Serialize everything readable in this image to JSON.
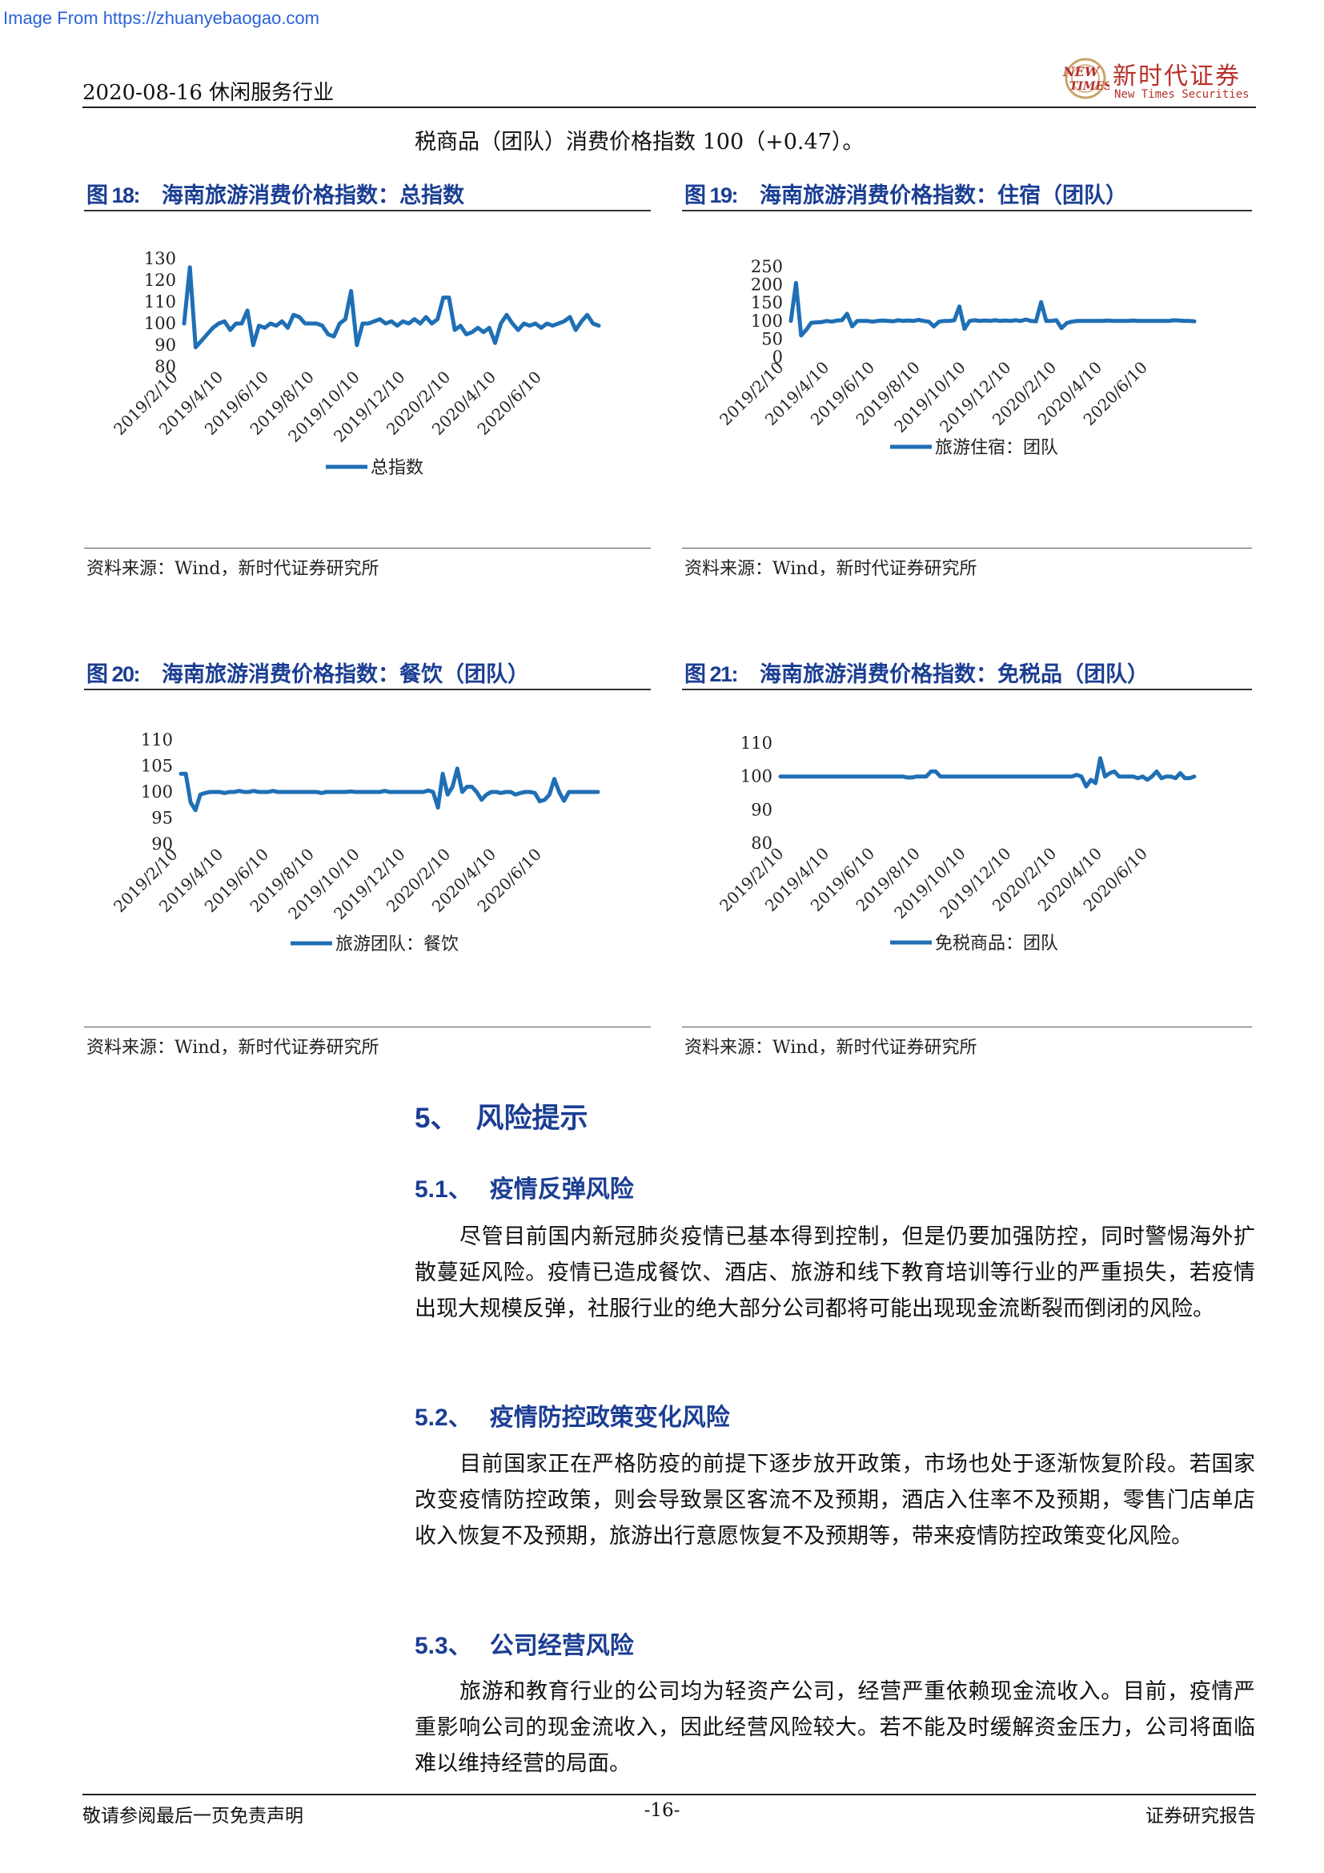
{
  "watermark": "Image From https://zhuanyebaogao.com",
  "header": {
    "date_industry": "2020-08-16 休闲服务行业",
    "logo_cn": "新时代证券",
    "logo_en": "New Times Securities",
    "logo_mark_line1": "NEW",
    "logo_mark_line2": "TIMES",
    "brand_color": "#b5322a"
  },
  "intro_line": "税商品（团队）消费价格指数 100（+0.47）。",
  "accent_color": "#1b3e93",
  "line_color": "#1f6fb5",
  "figures": [
    {
      "num": "图 18:",
      "title": "海南旅游消费价格指数：总指数",
      "legend": "总指数",
      "source": "资料来源：Wind，新时代证券研究所"
    },
    {
      "num": "图 19:",
      "title": "海南旅游消费价格指数：住宿（团队）",
      "legend": "旅游住宿：团队",
      "source": "资料来源：Wind，新时代证券研究所"
    },
    {
      "num": "图 20:",
      "title": "海南旅游消费价格指数：餐饮（团队）",
      "legend": "旅游团队：餐饮",
      "source": "资料来源：Wind，新时代证券研究所"
    },
    {
      "num": "图 21:",
      "title": "海南旅游消费价格指数：免税品（团队）",
      "legend": "免税商品：团队",
      "source": "资料来源：Wind，新时代证券研究所"
    }
  ],
  "chart_data": [
    {
      "type": "line",
      "x_ticks": [
        "2019/2/10",
        "2019/4/10",
        "2019/6/10",
        "2019/8/10",
        "2019/10/10",
        "2019/12/10",
        "2020/2/10",
        "2020/4/10",
        "2020/6/10"
      ],
      "y_ticks": [
        130,
        120,
        110,
        100,
        90,
        80
      ],
      "ylim": [
        80,
        130
      ],
      "legend_position": "bottom",
      "series": [
        {
          "name": "总指数",
          "values": [
            100,
            126,
            89,
            92,
            95,
            98,
            100,
            101,
            97,
            100,
            100,
            106,
            90,
            99,
            98,
            100,
            99,
            101,
            98,
            104,
            103,
            100,
            100,
            100,
            99,
            95,
            94,
            100,
            102,
            115,
            90,
            100,
            100,
            101,
            102,
            100,
            101,
            99,
            101,
            100,
            102,
            100,
            103,
            100,
            102,
            112,
            112,
            97,
            99,
            95,
            96,
            98,
            96,
            98,
            91,
            100,
            104,
            100,
            97,
            100,
            99,
            100,
            98,
            100,
            99,
            100,
            101,
            103,
            97,
            101,
            104,
            100,
            99
          ]
        }
      ]
    },
    {
      "type": "line",
      "x_ticks": [
        "2019/2/10",
        "2019/4/10",
        "2019/6/10",
        "2019/8/10",
        "2019/10/10",
        "2019/12/10",
        "2020/2/10",
        "2020/4/10",
        "2020/6/10"
      ],
      "y_ticks": [
        250,
        200,
        150,
        100,
        50,
        0
      ],
      "ylim": [
        0,
        250
      ],
      "legend_position": "bottom",
      "series": [
        {
          "name": "旅游住宿：团队",
          "values": [
            100,
            205,
            60,
            75,
            95,
            96,
            97,
            100,
            98,
            101,
            102,
            120,
            85,
            100,
            100,
            100,
            98,
            100,
            101,
            100,
            99,
            102,
            100,
            101,
            100,
            103,
            100,
            98,
            85,
            98,
            100,
            100,
            102,
            140,
            78,
            100,
            102,
            100,
            101,
            100,
            102,
            100,
            101,
            100,
            102,
            100,
            104,
            100,
            99,
            152,
            100,
            100,
            102,
            80,
            94,
            98,
            100,
            100,
            100,
            100,
            100,
            100,
            101,
            100,
            100,
            100,
            100,
            101,
            100,
            100,
            100,
            100,
            100,
            100,
            100,
            102,
            101,
            100,
            100,
            99
          ]
        }
      ]
    },
    {
      "type": "line",
      "x_ticks": [
        "2019/2/10",
        "2019/4/10",
        "2019/6/10",
        "2019/8/10",
        "2019/10/10",
        "2019/12/10",
        "2020/2/10",
        "2020/4/10",
        "2020/6/10"
      ],
      "y_ticks": [
        110,
        105,
        100,
        95,
        90
      ],
      "ylim": [
        90,
        110
      ],
      "legend_position": "bottom",
      "series": [
        {
          "name": "旅游团队：餐饮",
          "values": [
            103.5,
            103.5,
            98,
            96.5,
            99.5,
            99.8,
            100,
            100,
            100,
            99.8,
            100,
            100,
            100.2,
            100,
            100,
            100.2,
            100,
            100,
            100,
            100.2,
            100,
            100,
            100,
            100,
            100,
            100,
            100,
            100,
            100,
            99.8,
            100,
            100,
            100,
            100,
            100,
            100.1,
            100,
            100,
            100,
            100,
            100,
            100,
            100.2,
            100,
            100,
            100,
            100,
            100,
            100,
            100,
            100,
            100.3,
            100,
            97,
            103.5,
            99.5,
            101,
            104.5,
            100,
            101,
            101,
            100,
            98.5,
            99.5,
            100,
            100,
            99.8,
            100,
            100,
            99.5,
            99.8,
            100,
            100,
            99.8,
            98.2,
            98.5,
            99.5,
            102.5,
            100,
            98.3,
            100,
            100,
            100,
            100,
            100,
            100,
            100
          ]
        }
      ]
    },
    {
      "type": "line",
      "x_ticks": [
        "2019/2/10",
        "2019/4/10",
        "2019/6/10",
        "2019/8/10",
        "2019/10/10",
        "2019/12/10",
        "2020/2/10",
        "2020/4/10",
        "2020/6/10"
      ],
      "y_ticks": [
        110,
        100,
        90,
        80
      ],
      "ylim": [
        80,
        110
      ],
      "legend_position": "bottom",
      "series": [
        {
          "name": "免税商品：团队",
          "values": [
            100,
            100,
            100,
            100,
            100,
            100,
            100,
            100,
            100,
            100,
            100,
            100,
            100,
            100,
            100,
            100,
            100,
            100,
            100,
            100,
            100,
            100,
            100,
            100,
            100,
            100,
            100,
            99.7,
            99.7,
            100,
            100,
            100,
            101.5,
            101.5,
            100,
            100,
            100,
            100,
            100,
            100,
            100,
            100,
            100,
            100,
            100,
            100,
            100,
            100,
            100,
            100,
            100,
            100,
            100,
            100,
            100,
            100,
            100,
            100,
            100,
            100,
            100,
            100,
            100,
            100.5,
            100,
            97,
            99,
            98,
            105.5,
            100,
            101,
            101.5,
            100,
            100,
            100,
            100,
            99.5,
            100,
            99,
            100,
            101.5,
            99.5,
            100,
            100,
            99.5,
            101,
            99.5,
            99.5,
            100
          ]
        }
      ]
    }
  ],
  "section": {
    "num": "5、",
    "title": "风险提示",
    "subsections": [
      {
        "num": "5.1、",
        "title": "疫情反弹风险",
        "lines": [
          "尽管目前国内新冠肺炎疫情已基本得到控制，但是仍要加强防控，同时警惕海",
          "外扩散蔓延风险。疫情已造成餐饮、酒店、旅游和线下教育培训等行业的严重损失，",
          "若疫情出现大规模反弹，社服行业的绝大部分公司都将可能出现现金流断裂而倒闭",
          "的风险。"
        ]
      },
      {
        "num": "5.2、",
        "title": "疫情防控政策变化风险",
        "lines": [
          "目前国家正在严格防疫的前提下逐步放开政策，市场也处于逐渐恢复阶段。若",
          "国家改变疫情防控政策，则会导致景区客流不及预期，酒店入住率不及预期，零售",
          "门店单店收入恢复不及预期，旅游出行意愿恢复不及预期等，带来疫情防控政策变",
          "化风险。"
        ]
      },
      {
        "num": "5.3、",
        "title": "公司经营风险",
        "lines": [
          "旅游和教育行业的公司均为轻资产公司，经营严重依赖现金流收入。目前，疫",
          "情严重影响公司的现金流收入，因此经营风险较大。若不能及时缓解资金压力，公",
          "司将面临难以维持经营的局面。"
        ]
      }
    ]
  },
  "footer": {
    "left": "敬请参阅最后一页免责声明",
    "page": "-16-",
    "right": "证券研究报告"
  }
}
